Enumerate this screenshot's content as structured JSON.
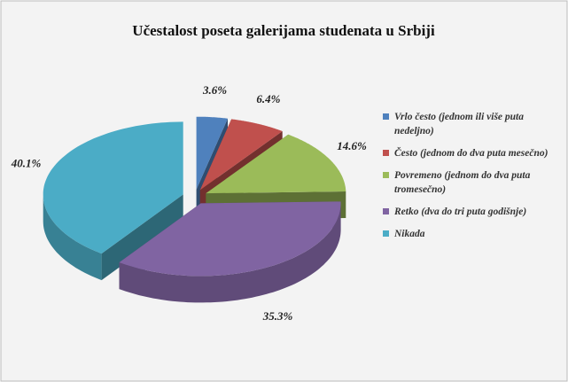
{
  "chart_data": {
    "type": "pie",
    "title": "Učestalost poseta galerijama studenata u Srbiji",
    "categories": [
      "Vrlo često (jednom ili više puta nedeljno)",
      "Često (jednom do dva puta mesečno)",
      "Povremeno (jednom do dva puta tromesečno)",
      "Retko (dva do tri puta godišnje)",
      "Nikada"
    ],
    "values": [
      3.6,
      6.4,
      14.6,
      35.3,
      40.1
    ],
    "value_labels": [
      "3.6%",
      "6.4%",
      "14.6%",
      "35.3%",
      "40.1%"
    ],
    "colors": [
      "#4f81bd",
      "#c0504d",
      "#9bbb59",
      "#8064a2",
      "#4bacc6"
    ],
    "legend": "right"
  }
}
